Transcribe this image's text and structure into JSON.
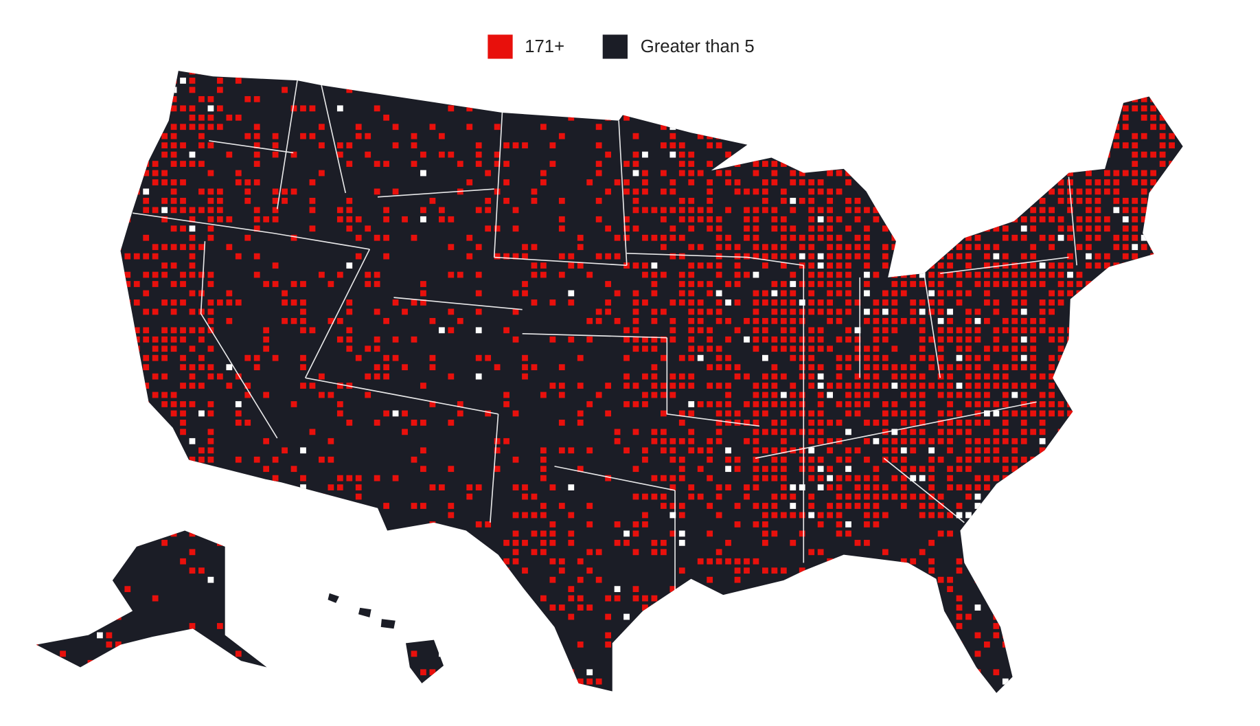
{
  "legend": {
    "items": [
      {
        "label": "171+",
        "color": "#e8100c"
      },
      {
        "label": "Greater than 5",
        "color": "#1b1d26"
      }
    ]
  }
}
